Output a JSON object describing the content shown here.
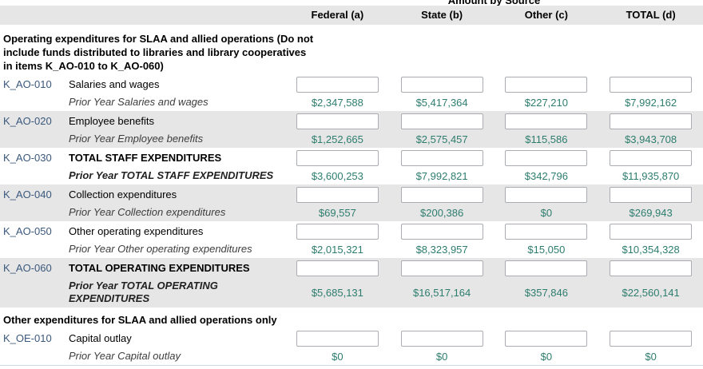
{
  "header": {
    "group_title": "Amount by Source",
    "columns": [
      "Federal (a)",
      "State (b)",
      "Other (c)",
      "TOTAL (d)"
    ]
  },
  "colors": {
    "row_code_blue": "#3a587c",
    "prior_value_teal": "#2d7d6e",
    "row_stripe_gray": "#e6e6e6"
  },
  "sections": [
    {
      "heading": "Operating expenditures for SLAA and allied operations (Do not include funds distributed to libraries and library cooperatives in items K_AO-010 to K_AO-060)",
      "rows": [
        {
          "code": "K_AO-010",
          "label": "Salaries and wages",
          "prior_label": "Prior Year Salaries and wages",
          "values": [
            "$2,347,588",
            "$5,417,364",
            "$227,210",
            "$7,992,162"
          ]
        },
        {
          "code": "K_AO-020",
          "label": "Employee benefits",
          "prior_label": "Prior Year Employee benefits",
          "values": [
            "$1,252,665",
            "$2,575,457",
            "$115,586",
            "$3,943,708"
          ]
        },
        {
          "code": "K_AO-030",
          "label": "TOTAL STAFF EXPENDITURES",
          "prior_label": "Prior Year TOTAL STAFF EXPENDITURES",
          "values": [
            "$3,600,253",
            "$7,992,821",
            "$342,796",
            "$11,935,870"
          ]
        },
        {
          "code": "K_AO-040",
          "label": "Collection expenditures",
          "prior_label": "Prior Year Collection expenditures",
          "values": [
            "$69,557",
            "$200,386",
            "$0",
            "$269,943"
          ]
        },
        {
          "code": "K_AO-050",
          "label": "Other operating expenditures",
          "prior_label": "Prior Year Other operating expenditures",
          "values": [
            "$2,015,321",
            "$8,323,957",
            "$15,050",
            "$10,354,328"
          ]
        },
        {
          "code": "K_AO-060",
          "label": "TOTAL OPERATING EXPENDITURES",
          "prior_label": "Prior Year TOTAL OPERATING EXPENDITURES",
          "values": [
            "$5,685,131",
            "$16,517,164",
            "$357,846",
            "$22,560,141"
          ]
        }
      ]
    },
    {
      "heading": "Other expenditures for SLAA and allied operations only",
      "rows": [
        {
          "code": "K_OE-010",
          "label": "Capital outlay",
          "prior_label": "Prior Year Capital outlay",
          "values": [
            "$0",
            "$0",
            "$0",
            "$0"
          ]
        }
      ]
    }
  ]
}
